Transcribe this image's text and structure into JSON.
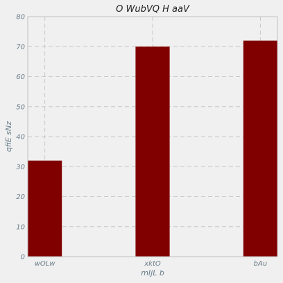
{
  "chart_data": {
    "type": "bar",
    "title": "O WubVQ H aaV",
    "xlabel": "mIjL   b",
    "ylabel": "qfiE sNz",
    "categories": [
      "wOLw",
      "xktO",
      "bAu"
    ],
    "series": [
      {
        "values": [
          32,
          70,
          72
        ]
      }
    ],
    "ylim": [
      0,
      80
    ],
    "yticks": [
      0,
      10,
      20,
      30,
      40,
      50,
      60,
      70,
      80
    ],
    "grid": true,
    "bar_color": "#800000",
    "grid_color": "#c8c8c8",
    "background_color": "#f0f0f0"
  }
}
